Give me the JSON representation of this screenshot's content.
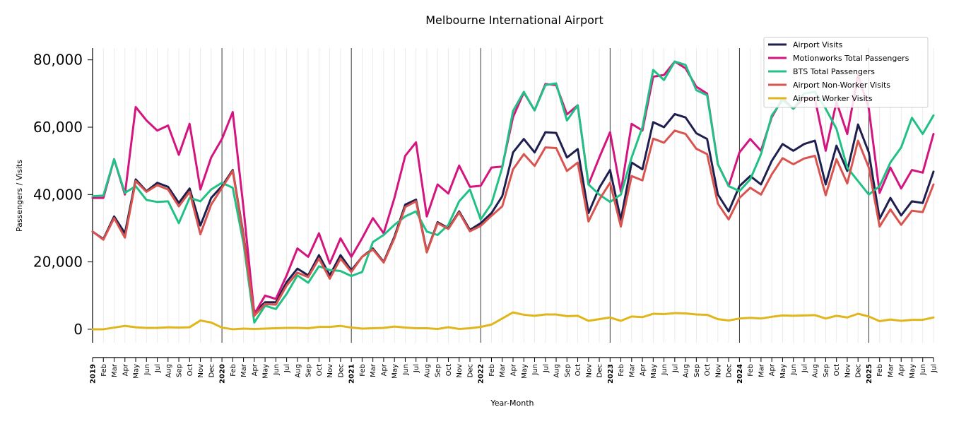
{
  "chart_data": {
    "type": "line",
    "title": "Melbourne International Airport",
    "xlabel": "Year-Month",
    "ylabel": "Passengers / Visits",
    "ylim": [
      -4000,
      83500
    ],
    "yticks": [
      0,
      20000,
      40000,
      60000,
      80000
    ],
    "ytick_labels": [
      "0",
      "20,000",
      "40,000",
      "60,000",
      "80,000"
    ],
    "grid": "vertical monthly gridlines; dark year separators",
    "legend_position": "top-right",
    "x_labels": [
      "2019",
      "Feb",
      "Mar",
      "Apr",
      "May",
      "Jun",
      "Jul",
      "Aug",
      "Sep",
      "Oct",
      "Nov",
      "Dec",
      "2020",
      "Feb",
      "Mar",
      "Apr",
      "May",
      "Jun",
      "Jul",
      "Aug",
      "Sep",
      "Oct",
      "Nov",
      "Dec",
      "2021",
      "Feb",
      "Mar",
      "Apr",
      "May",
      "Jun",
      "Jul",
      "Aug",
      "Sep",
      "Oct",
      "Nov",
      "Dec",
      "2022",
      "Feb",
      "Mar",
      "Apr",
      "May",
      "Jun",
      "Jul",
      "Aug",
      "Sep",
      "Oct",
      "Nov",
      "Dec",
      "2023",
      "Feb",
      "Mar",
      "Apr",
      "May",
      "Jun",
      "Jul",
      "Aug",
      "Sep",
      "Oct",
      "Nov",
      "Dec",
      "2024",
      "Feb",
      "Mar",
      "Apr",
      "May",
      "Jun",
      "Jul",
      "Aug",
      "Sep",
      "Oct",
      "Nov",
      "Dec",
      "2025",
      "Feb",
      "Mar",
      "Apr",
      "May",
      "Jun",
      "Jul"
    ],
    "year_separators": [
      "2020",
      "2021",
      "2022",
      "2023",
      "2024",
      "2025"
    ],
    "series": [
      {
        "name": "Airport Visits",
        "color": "#1f1f4f",
        "values": [
          29000,
          26800,
          33500,
          28500,
          44500,
          41000,
          43500,
          42300,
          37500,
          41800,
          30800,
          39000,
          42500,
          47300,
          28000,
          5000,
          8000,
          8000,
          14000,
          18000,
          16000,
          22000,
          16000,
          22000,
          17500,
          21500,
          24000,
          20000,
          27500,
          37000,
          38500,
          23000,
          31800,
          30000,
          35000,
          29500,
          31500,
          34500,
          39500,
          52500,
          56500,
          52500,
          58500,
          58300,
          51000,
          53500,
          34500,
          42000,
          47300,
          32500,
          49500,
          47500,
          61500,
          60000,
          63900,
          62900,
          58200,
          56500,
          40000,
          35000,
          42500,
          45500,
          43000,
          50000,
          55000,
          53000,
          55000,
          56000,
          43000,
          54500,
          47000,
          60800,
          52500,
          32800,
          39000,
          33800,
          38000,
          37500,
          46800
        ]
      },
      {
        "name": "Motionworks Total Passengers",
        "color": "#d4157f",
        "values": [
          39000,
          39000,
          50500,
          40000,
          66000,
          62000,
          59000,
          60500,
          51800,
          61000,
          41500,
          51000,
          56500,
          64500,
          36000,
          4500,
          10000,
          9000,
          16000,
          24000,
          21500,
          28500,
          19500,
          27000,
          21500,
          27000,
          33000,
          28500,
          39000,
          51500,
          55500,
          33500,
          43000,
          40300,
          48600,
          42300,
          42600,
          48000,
          48300,
          63000,
          70300,
          65000,
          72800,
          72500,
          63800,
          66500,
          43000,
          51000,
          58500,
          40800,
          61000,
          59000,
          75000,
          75500,
          79500,
          77500,
          72000,
          70000,
          49000,
          42500,
          52500,
          56500,
          53000,
          63000,
          68500,
          65500,
          68700,
          68500,
          53000,
          67500,
          58000,
          75500,
          65500,
          40500,
          48000,
          41800,
          47300,
          46500,
          58000
        ]
      },
      {
        "name": "BTS Total Passengers",
        "color": "#21c186",
        "values": [
          39500,
          39700,
          50500,
          40500,
          42500,
          38400,
          37800,
          38000,
          31500,
          39000,
          38000,
          41500,
          43500,
          42000,
          25500,
          2000,
          7000,
          6000,
          10500,
          16000,
          13800,
          18700,
          17600,
          17300,
          15800,
          17000,
          25900,
          28000,
          31000,
          33500,
          35000,
          29000,
          28000,
          31000,
          38000,
          41500,
          32600,
          37300,
          48000,
          64800,
          70500,
          65000,
          72500,
          73000,
          62000,
          66500,
          43000,
          40000,
          37800,
          40000,
          51000,
          60000,
          77000,
          74000,
          79500,
          78500,
          71000,
          69500,
          49000,
          42500,
          41000,
          44500,
          52000,
          63500,
          68000,
          65500,
          70000,
          70500,
          65500,
          59500,
          48000,
          44000,
          40000,
          42500,
          49500,
          54000,
          62800,
          58000,
          63500
        ]
      },
      {
        "name": "Airport Non-Worker Visits",
        "color": "#d9534f",
        "values": [
          29000,
          26600,
          33000,
          27200,
          44000,
          40800,
          42800,
          41500,
          36500,
          40800,
          28200,
          37000,
          42000,
          47000,
          27500,
          4000,
          7500,
          7300,
          13000,
          16800,
          15500,
          21000,
          15000,
          21000,
          17000,
          21500,
          23700,
          19800,
          27000,
          36300,
          38000,
          22800,
          31500,
          29800,
          34700,
          29100,
          30700,
          33700,
          36500,
          47500,
          52000,
          48500,
          54000,
          53800,
          47000,
          49500,
          32000,
          38500,
          43500,
          30500,
          45500,
          44200,
          56600,
          55400,
          59000,
          58000,
          53600,
          52000,
          37300,
          32600,
          39000,
          42000,
          40000,
          46000,
          50800,
          49000,
          50700,
          51500,
          39800,
          50500,
          43300,
          56000,
          48000,
          30500,
          35600,
          31000,
          35200,
          34800,
          43000
        ]
      },
      {
        "name": "Airport Worker Visits",
        "color": "#e0b61b",
        "values": [
          0,
          0,
          500,
          1000,
          600,
          400,
          400,
          600,
          500,
          600,
          2600,
          2000,
          500,
          0,
          200,
          100,
          200,
          300,
          400,
          400,
          300,
          700,
          700,
          1000,
          500,
          200,
          300,
          400,
          800,
          500,
          300,
          300,
          100,
          600,
          100,
          300,
          700,
          1400,
          3200,
          5000,
          4300,
          4000,
          4400,
          4400,
          3900,
          4000,
          2500,
          3000,
          3500,
          2500,
          3800,
          3600,
          4600,
          4500,
          4800,
          4700,
          4400,
          4300,
          3000,
          2600,
          3200,
          3400,
          3200,
          3700,
          4100,
          4000,
          4100,
          4200,
          3200,
          4000,
          3500,
          4600,
          3800,
          2400,
          2900,
          2500,
          2800,
          2800,
          3500
        ]
      }
    ]
  }
}
